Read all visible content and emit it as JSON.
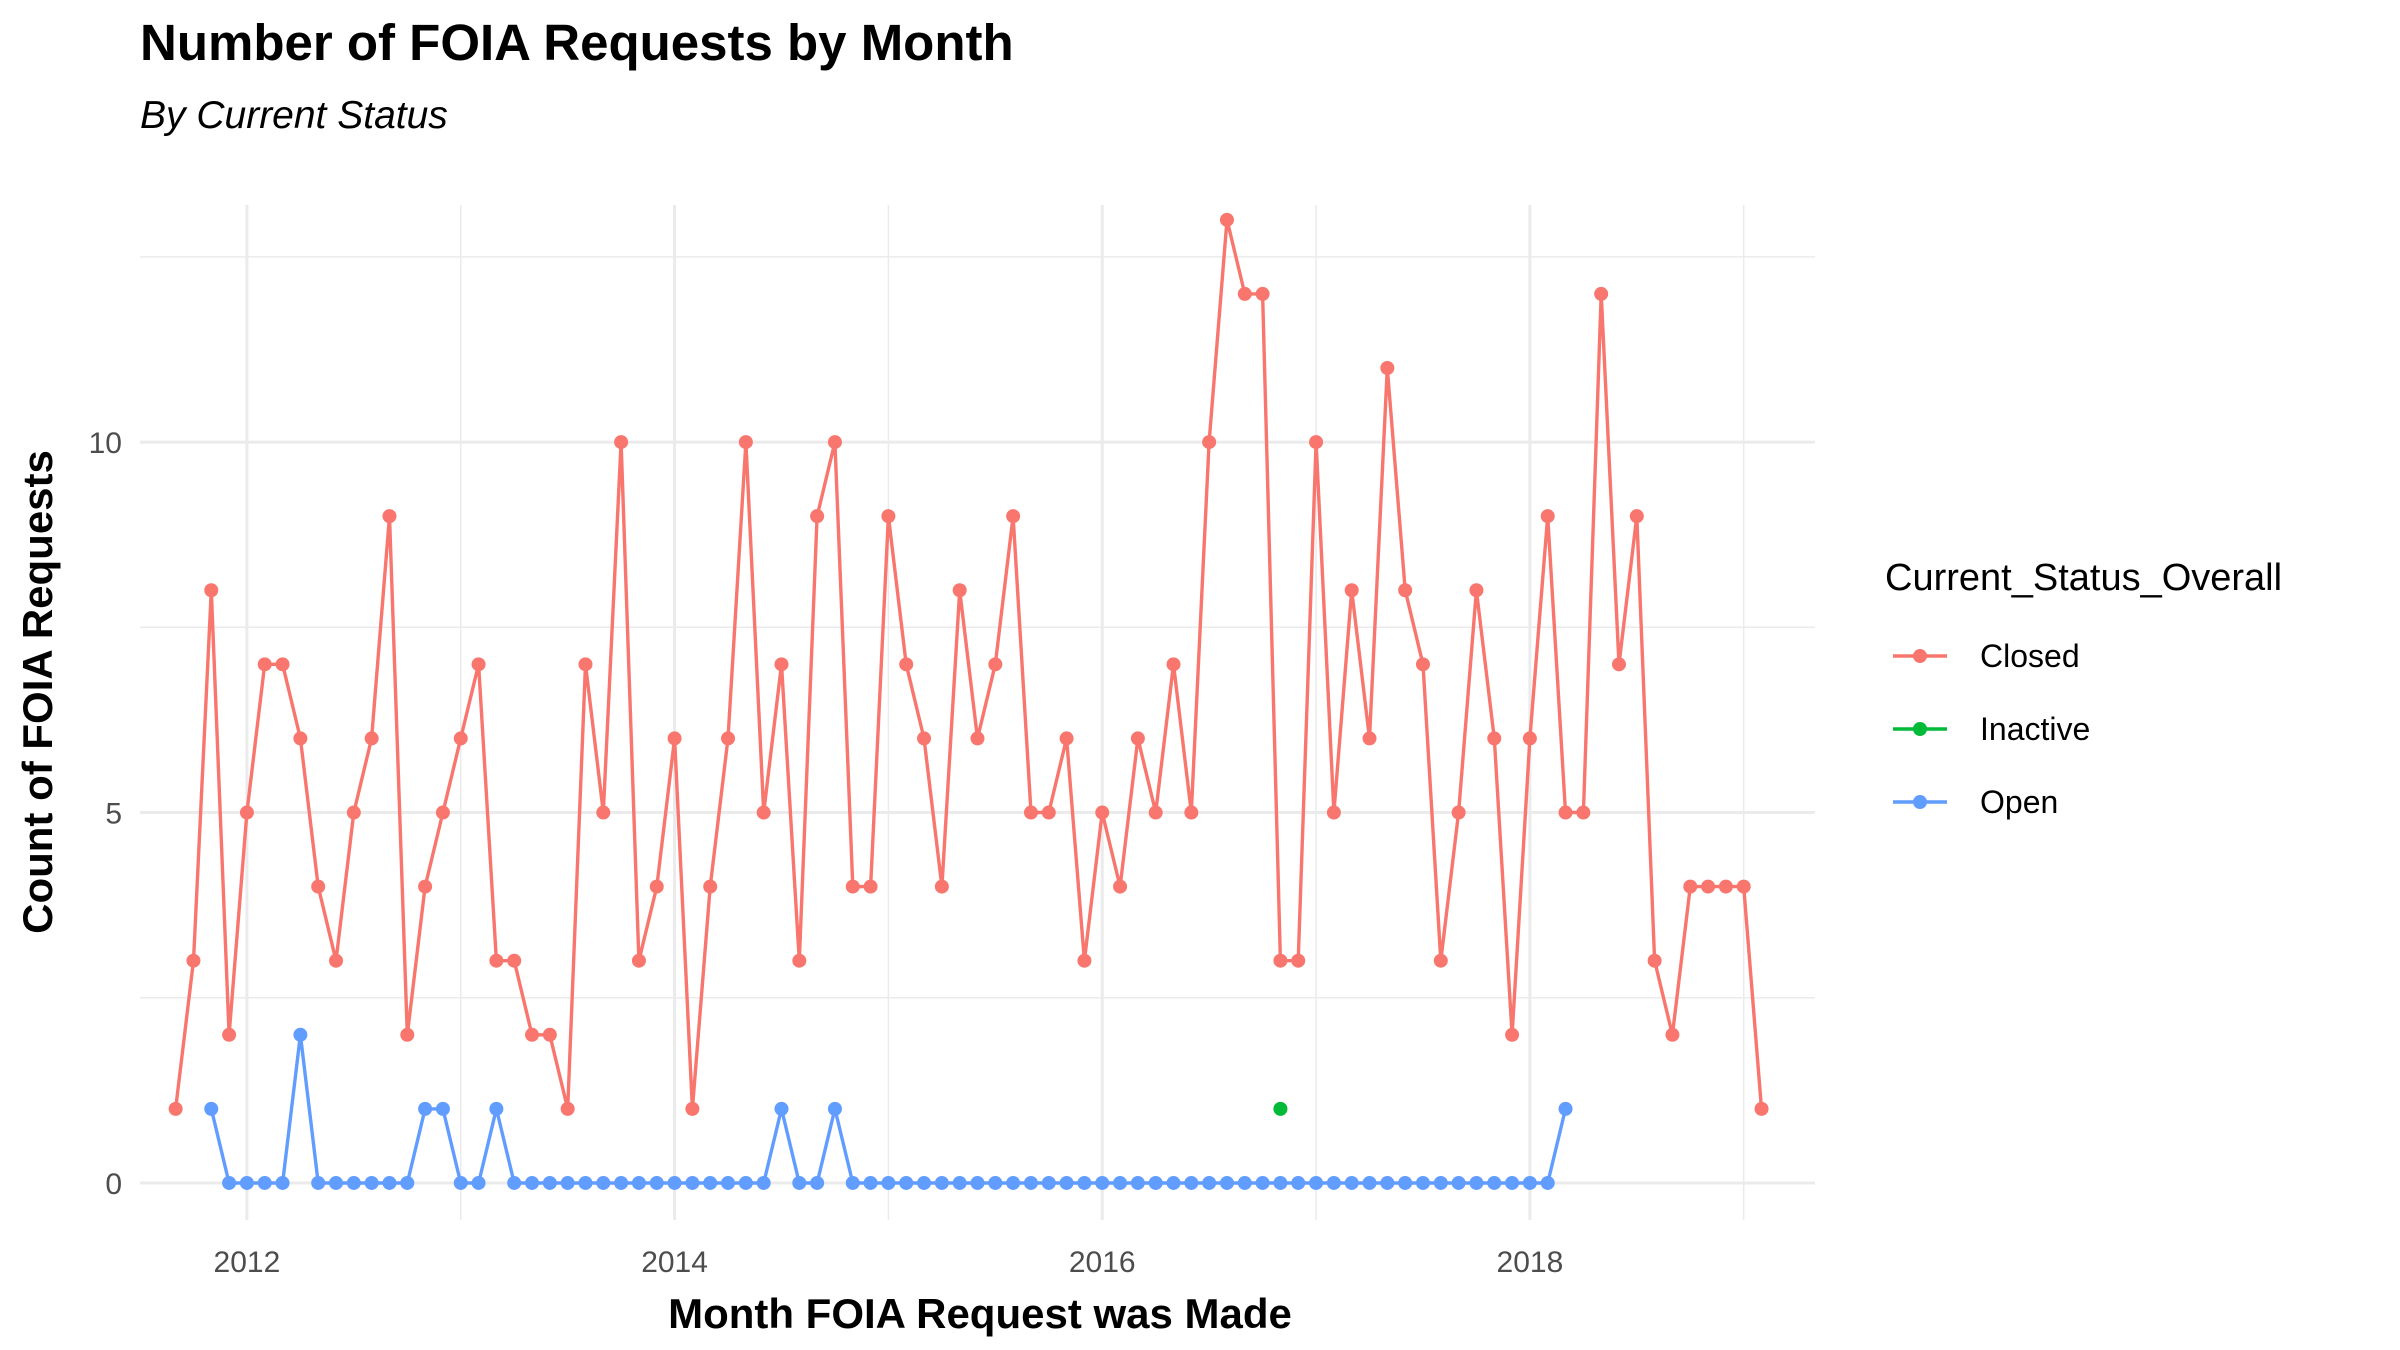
{
  "chart_data": {
    "type": "line",
    "title": "Number of FOIA Requests by Month",
    "subtitle": "By Current Status",
    "xlabel": "Month FOIA Request was Made",
    "ylabel": "Count of FOIA Requests",
    "x_ticks": [
      "2012",
      "2014",
      "2016",
      "2018"
    ],
    "y_ticks": [
      "0",
      "5",
      "10"
    ],
    "xlim": [
      "2011-07",
      "2019-05"
    ],
    "ylim": [
      -0.5,
      13.2
    ],
    "grid": true,
    "legend": {
      "title": "Current_Status_Overall",
      "placement": "right"
    },
    "series": [
      {
        "name": "Closed",
        "color": "#F8766D",
        "points": [
          [
            "2011-09",
            1
          ],
          [
            "2011-10",
            3
          ],
          [
            "2011-11",
            8
          ],
          [
            "2011-12",
            2
          ],
          [
            "2012-01",
            5
          ],
          [
            "2012-02",
            7
          ],
          [
            "2012-03",
            7
          ],
          [
            "2012-04",
            6
          ],
          [
            "2012-05",
            4
          ],
          [
            "2012-06",
            3
          ],
          [
            "2012-07",
            5
          ],
          [
            "2012-08",
            6
          ],
          [
            "2012-09",
            9
          ],
          [
            "2012-10",
            2
          ],
          [
            "2012-11",
            4
          ],
          [
            "2012-12",
            5
          ],
          [
            "2013-01",
            6
          ],
          [
            "2013-02",
            7
          ],
          [
            "2013-03",
            3
          ],
          [
            "2013-04",
            3
          ],
          [
            "2013-05",
            2
          ],
          [
            "2013-06",
            2
          ],
          [
            "2013-07",
            1
          ],
          [
            "2013-08",
            7
          ],
          [
            "2013-09",
            5
          ],
          [
            "2013-10",
            10
          ],
          [
            "2013-11",
            3
          ],
          [
            "2013-12",
            4
          ],
          [
            "2014-01",
            6
          ],
          [
            "2014-02",
            1
          ],
          [
            "2014-03",
            4
          ],
          [
            "2014-04",
            6
          ],
          [
            "2014-05",
            10
          ],
          [
            "2014-06",
            5
          ],
          [
            "2014-07",
            7
          ],
          [
            "2014-08",
            3
          ],
          [
            "2014-09",
            9
          ],
          [
            "2014-10",
            10
          ],
          [
            "2014-11",
            4
          ],
          [
            "2014-12",
            4
          ],
          [
            "2015-01",
            9
          ],
          [
            "2015-02",
            7
          ],
          [
            "2015-03",
            6
          ],
          [
            "2015-04",
            4
          ],
          [
            "2015-05",
            8
          ],
          [
            "2015-06",
            6
          ],
          [
            "2015-07",
            7
          ],
          [
            "2015-08",
            9
          ],
          [
            "2015-09",
            5
          ],
          [
            "2015-10",
            5
          ],
          [
            "2015-11",
            6
          ],
          [
            "2015-12",
            3
          ],
          [
            "2016-01",
            5
          ],
          [
            "2016-02",
            4
          ],
          [
            "2016-03",
            6
          ],
          [
            "2016-04",
            5
          ],
          [
            "2016-05",
            7
          ],
          [
            "2016-06",
            5
          ],
          [
            "2016-07",
            10
          ],
          [
            "2016-08",
            13
          ],
          [
            "2016-09",
            12
          ],
          [
            "2016-10",
            12
          ],
          [
            "2016-11",
            3
          ],
          [
            "2016-12",
            3
          ],
          [
            "2017-01",
            10
          ],
          [
            "2017-02",
            5
          ],
          [
            "2017-03",
            8
          ],
          [
            "2017-04",
            6
          ],
          [
            "2017-05",
            11
          ],
          [
            "2017-06",
            8
          ],
          [
            "2017-07",
            7
          ],
          [
            "2017-08",
            3
          ],
          [
            "2017-09",
            5
          ],
          [
            "2017-10",
            8
          ],
          [
            "2017-11",
            6
          ],
          [
            "2017-12",
            2
          ],
          [
            "2018-01",
            6
          ],
          [
            "2018-02",
            9
          ],
          [
            "2018-03",
            5
          ],
          [
            "2018-04",
            5
          ],
          [
            "2018-05",
            12
          ],
          [
            "2018-06",
            7
          ],
          [
            "2018-07",
            9
          ],
          [
            "2018-08",
            3
          ],
          [
            "2018-09",
            2
          ],
          [
            "2018-10",
            4
          ],
          [
            "2018-11",
            4
          ],
          [
            "2018-12",
            4
          ],
          [
            "2019-01",
            4
          ],
          [
            "2019-02",
            1
          ]
        ]
      },
      {
        "name": "Inactive",
        "color": "#00BA38",
        "points": [
          [
            "2016-11",
            1
          ]
        ]
      },
      {
        "name": "Open",
        "color": "#619CFF",
        "points": [
          [
            "2011-11",
            1
          ],
          [
            "2011-12",
            0
          ],
          [
            "2012-01",
            0
          ],
          [
            "2012-02",
            0
          ],
          [
            "2012-03",
            0
          ],
          [
            "2012-04",
            2
          ],
          [
            "2012-05",
            0
          ],
          [
            "2012-06",
            0
          ],
          [
            "2012-07",
            0
          ],
          [
            "2012-08",
            0
          ],
          [
            "2012-09",
            0
          ],
          [
            "2012-10",
            0
          ],
          [
            "2012-11",
            1
          ],
          [
            "2012-12",
            1
          ],
          [
            "2013-01",
            0
          ],
          [
            "2013-02",
            0
          ],
          [
            "2013-03",
            1
          ],
          [
            "2013-04",
            0
          ],
          [
            "2013-05",
            0
          ],
          [
            "2013-06",
            0
          ],
          [
            "2013-07",
            0
          ],
          [
            "2013-08",
            0
          ],
          [
            "2013-09",
            0
          ],
          [
            "2013-10",
            0
          ],
          [
            "2013-11",
            0
          ],
          [
            "2013-12",
            0
          ],
          [
            "2014-01",
            0
          ],
          [
            "2014-02",
            0
          ],
          [
            "2014-03",
            0
          ],
          [
            "2014-04",
            0
          ],
          [
            "2014-05",
            0
          ],
          [
            "2014-06",
            0
          ],
          [
            "2014-07",
            1
          ],
          [
            "2014-08",
            0
          ],
          [
            "2014-09",
            0
          ],
          [
            "2014-10",
            1
          ],
          [
            "2014-11",
            0
          ],
          [
            "2014-12",
            0
          ],
          [
            "2015-01",
            0
          ],
          [
            "2015-02",
            0
          ],
          [
            "2015-03",
            0
          ],
          [
            "2015-04",
            0
          ],
          [
            "2015-05",
            0
          ],
          [
            "2015-06",
            0
          ],
          [
            "2015-07",
            0
          ],
          [
            "2015-08",
            0
          ],
          [
            "2015-09",
            0
          ],
          [
            "2015-10",
            0
          ],
          [
            "2015-11",
            0
          ],
          [
            "2015-12",
            0
          ],
          [
            "2016-01",
            0
          ],
          [
            "2016-02",
            0
          ],
          [
            "2016-03",
            0
          ],
          [
            "2016-04",
            0
          ],
          [
            "2016-05",
            0
          ],
          [
            "2016-06",
            0
          ],
          [
            "2016-07",
            0
          ],
          [
            "2016-08",
            0
          ],
          [
            "2016-09",
            0
          ],
          [
            "2016-10",
            0
          ],
          [
            "2016-11",
            0
          ],
          [
            "2016-12",
            0
          ],
          [
            "2017-01",
            0
          ],
          [
            "2017-02",
            0
          ],
          [
            "2017-03",
            0
          ],
          [
            "2017-04",
            0
          ],
          [
            "2017-05",
            0
          ],
          [
            "2017-06",
            0
          ],
          [
            "2017-07",
            0
          ],
          [
            "2017-08",
            0
          ],
          [
            "2017-09",
            0
          ],
          [
            "2017-10",
            0
          ],
          [
            "2017-11",
            0
          ],
          [
            "2017-12",
            0
          ],
          [
            "2018-01",
            0
          ],
          [
            "2018-02",
            0
          ],
          [
            "2018-03",
            1
          ]
        ]
      }
    ]
  }
}
